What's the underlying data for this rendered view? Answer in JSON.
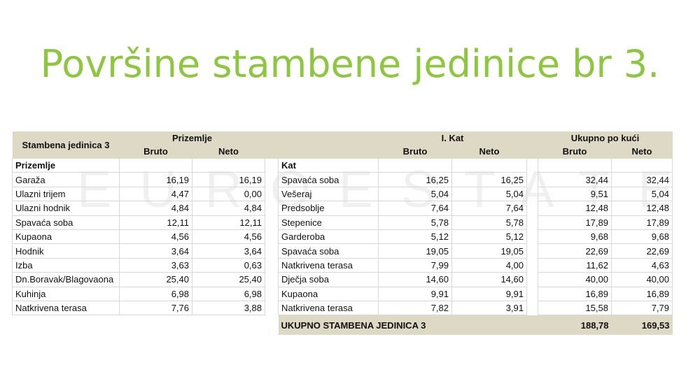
{
  "title": "Površine stambene jedinice br 3.",
  "watermark": "EUROESTATE",
  "colors": {
    "title": "#8dc63f",
    "header_bg": "#ddd9c4"
  },
  "header": {
    "unit": "Stambena jedinica 3",
    "group1": "Prizemlje",
    "group2": "I. Kat",
    "group3": "Ukupno po kući",
    "bruto": "Bruto",
    "neto": "Neto"
  },
  "left_section": "Prizemlje",
  "right_section": "Kat",
  "rows": [
    {
      "l": "Garaža",
      "lb": "16,19",
      "ln": "16,19",
      "r": "Spavaća soba",
      "rb": "16,25",
      "rn": "16,25",
      "tb": "32,44",
      "tn": "32,44"
    },
    {
      "l": "Ulazni trijem",
      "lb": "4,47",
      "ln": "0,00",
      "r": "Vešeraj",
      "rb": "5,04",
      "rn": "5,04",
      "tb": "9,51",
      "tn": "5,04"
    },
    {
      "l": "Ulazni hodnik",
      "lb": "4,84",
      "ln": "4,84",
      "r": "Predsoblje",
      "rb": "7,64",
      "rn": "7,64",
      "tb": "12,48",
      "tn": "12,48"
    },
    {
      "l": "Spavaća soba",
      "lb": "12,11",
      "ln": "12,11",
      "r": "Stepenice",
      "rb": "5,78",
      "rn": "5,78",
      "tb": "17,89",
      "tn": "17,89"
    },
    {
      "l": "Kupaona",
      "lb": "4,56",
      "ln": "4,56",
      "r": "Garderoba",
      "rb": "5,12",
      "rn": "5,12",
      "tb": "9,68",
      "tn": "9,68"
    },
    {
      "l": "Hodnik",
      "lb": "3,64",
      "ln": "3,64",
      "r": "Spavaća soba",
      "rb": "19,05",
      "rn": "19,05",
      "tb": "22,69",
      "tn": "22,69"
    },
    {
      "l": "Izba",
      "lb": "3,63",
      "ln": "0,63",
      "r": "Natkrivena terasa",
      "rb": "7,99",
      "rn": "4,00",
      "tb": "11,62",
      "tn": "4,63"
    },
    {
      "l": "Dn.Boravak/Blagovaona",
      "lb": "25,40",
      "ln": "25,40",
      "r": "Dječja soba",
      "rb": "14,60",
      "rn": "14,60",
      "tb": "40,00",
      "tn": "40,00"
    },
    {
      "l": "Kuhinja",
      "lb": "6,98",
      "ln": "6,98",
      "r": "Kupaona",
      "rb": "9,91",
      "rn": "9,91",
      "tb": "16,89",
      "tn": "16,89"
    },
    {
      "l": "Natkrivena terasa",
      "lb": "7,76",
      "ln": "3,88",
      "r": "Natkrivena terasa",
      "rb": "7,82",
      "rn": "3,91",
      "tb": "15,58",
      "tn": "7,79"
    }
  ],
  "total": {
    "label": "UKUPNO STAMBENA JEDINICA 3",
    "bruto": "188,78",
    "neto": "169,53"
  }
}
